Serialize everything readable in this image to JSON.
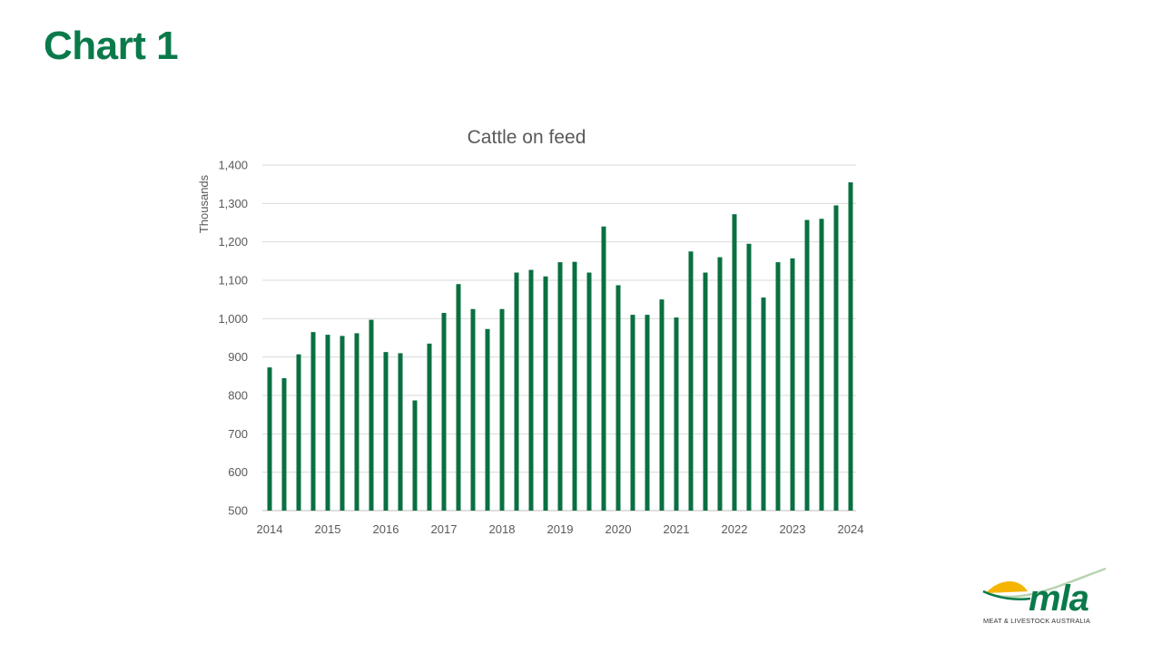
{
  "page": {
    "title": "Chart 1"
  },
  "colors": {
    "accent": "#0a7a4a",
    "bar": "#0a7041",
    "grid": "#d9d9d9",
    "text": "#595959"
  },
  "logo": {
    "name": "mla",
    "subtitle": "MEAT & LIVESTOCK AUSTRALIA",
    "icon": "sun-over-hill-icon"
  },
  "chart_data": {
    "type": "bar",
    "title": "Cattle on feed",
    "ylabel": "Thousands",
    "ylim": [
      500,
      1400
    ],
    "yticks": [
      500,
      600,
      700,
      800,
      900,
      1000,
      1100,
      1200,
      1300,
      1400
    ],
    "ytick_labels": [
      "500",
      "600",
      "700",
      "800",
      "900",
      "1,000",
      "1,100",
      "1,200",
      "1,300",
      "1,400"
    ],
    "xtick_labels": [
      "2014",
      "2015",
      "2016",
      "2017",
      "2018",
      "2019",
      "2020",
      "2021",
      "2022",
      "2023",
      "2024"
    ],
    "grid": true,
    "legend": "none",
    "series": [
      {
        "values": [
          873,
          845,
          907,
          965,
          958,
          955,
          962,
          997,
          913,
          910,
          787,
          935,
          1015,
          1090,
          1025,
          973,
          1025,
          1120,
          1127,
          1110,
          1147,
          1148,
          1120,
          1240,
          1087,
          1010,
          1010,
          1050,
          1003,
          1175,
          1120,
          1160,
          1272,
          1195,
          1055,
          1147,
          1157,
          1257,
          1260,
          1295,
          1355
        ]
      }
    ]
  }
}
